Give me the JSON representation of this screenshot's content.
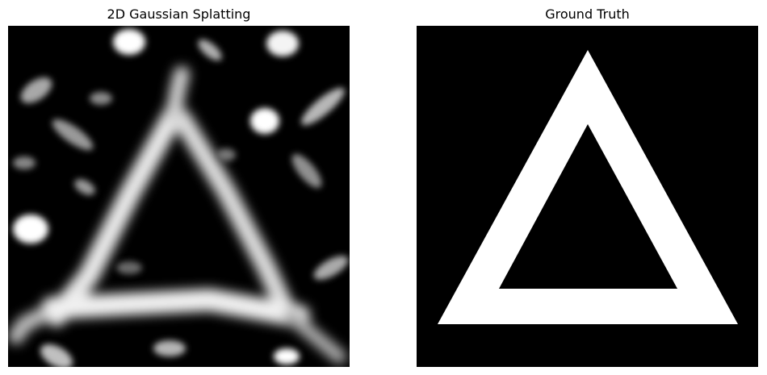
{
  "figure": {
    "left_panel": {
      "title": "2D Gaussian Splatting"
    },
    "right_panel": {
      "title": "Ground Truth"
    },
    "colors": {
      "background": "#000000",
      "foreground": "#ffffff",
      "page": "#ffffff"
    }
  }
}
